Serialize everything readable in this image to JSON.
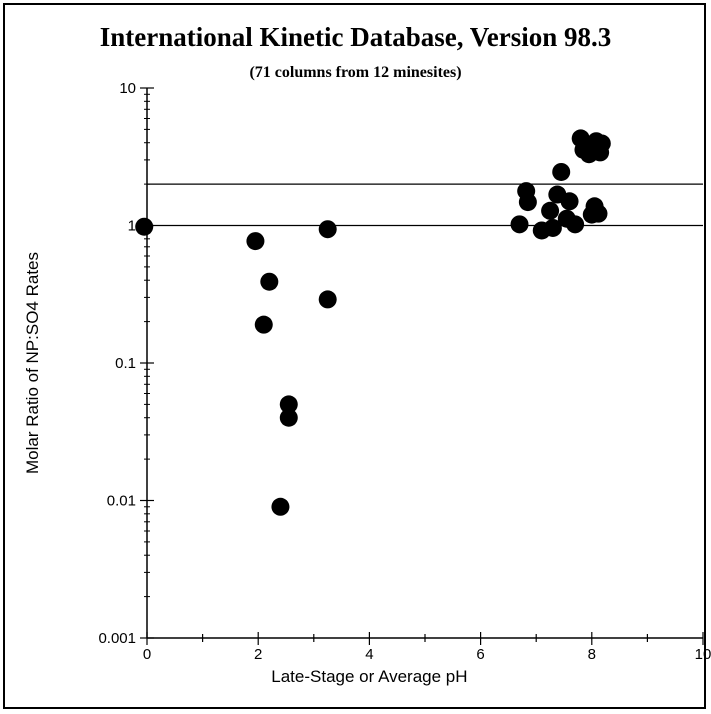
{
  "chart_data": {
    "type": "scatter",
    "title": "International Kinetic Database, Version 98.3",
    "subtitle": "(71 columns from 12 minesites)",
    "xlabel": "Late-Stage or Average pH",
    "ylabel": "Molar Ratio of NP:SO4 Rates",
    "xlim": [
      0,
      10
    ],
    "ylim": [
      0.001,
      10
    ],
    "yscale": "log",
    "x_ticks": [
      "0",
      "2",
      "4",
      "6",
      "8",
      "10"
    ],
    "y_ticks": [
      "0.001",
      "0.01",
      "0.1",
      "1",
      "10"
    ],
    "reference_lines": [
      1,
      2
    ],
    "grid": false,
    "points": [
      {
        "x": -0.05,
        "y": 0.98
      },
      {
        "x": 1.95,
        "y": 0.77
      },
      {
        "x": 2.2,
        "y": 0.39
      },
      {
        "x": 2.1,
        "y": 0.19
      },
      {
        "x": 2.4,
        "y": 0.009
      },
      {
        "x": 2.55,
        "y": 0.05
      },
      {
        "x": 2.55,
        "y": 0.04
      },
      {
        "x": 3.25,
        "y": 0.94
      },
      {
        "x": 3.25,
        "y": 0.29
      },
      {
        "x": 6.7,
        "y": 1.02
      },
      {
        "x": 6.82,
        "y": 1.78
      },
      {
        "x": 6.85,
        "y": 1.48
      },
      {
        "x": 7.1,
        "y": 0.92
      },
      {
        "x": 7.25,
        "y": 1.28
      },
      {
        "x": 7.3,
        "y": 0.96
      },
      {
        "x": 7.38,
        "y": 1.68
      },
      {
        "x": 7.45,
        "y": 2.45
      },
      {
        "x": 7.55,
        "y": 1.12
      },
      {
        "x": 7.6,
        "y": 1.5
      },
      {
        "x": 7.7,
        "y": 1.02
      },
      {
        "x": 7.8,
        "y": 4.3
      },
      {
        "x": 7.85,
        "y": 3.55
      },
      {
        "x": 7.95,
        "y": 3.3
      },
      {
        "x": 8.0,
        "y": 1.2
      },
      {
        "x": 8.05,
        "y": 1.38
      },
      {
        "x": 8.08,
        "y": 4.1
      },
      {
        "x": 8.1,
        "y": 3.7
      },
      {
        "x": 8.12,
        "y": 1.22
      },
      {
        "x": 8.15,
        "y": 3.4
      },
      {
        "x": 8.18,
        "y": 3.95
      }
    ]
  }
}
